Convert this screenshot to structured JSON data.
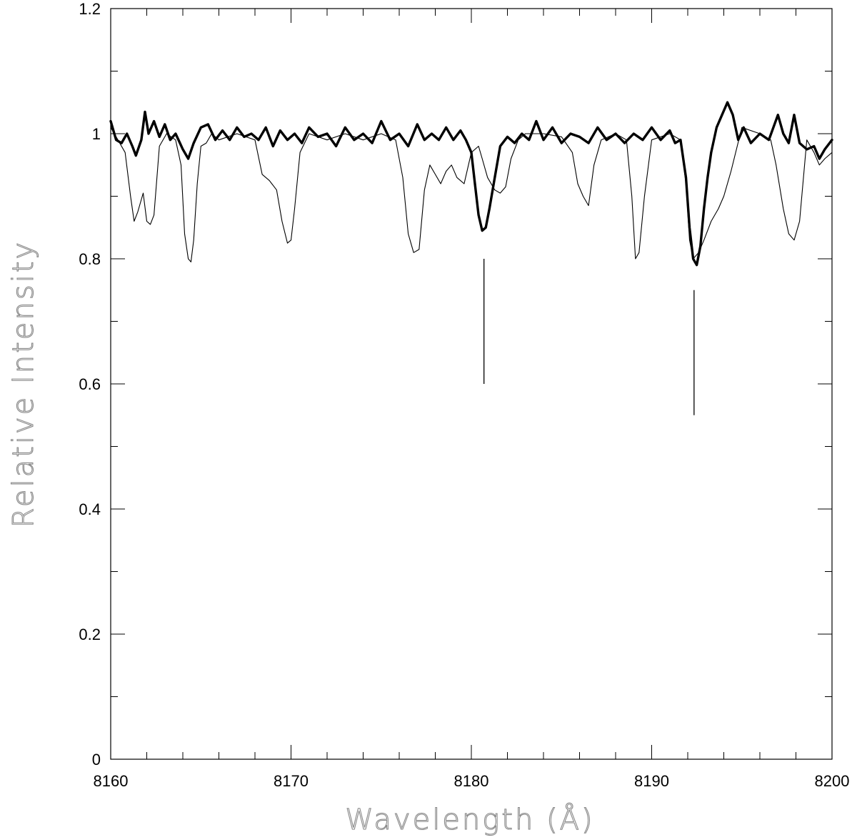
{
  "chart_data": {
    "type": "line",
    "title": "",
    "xlabel": "Wavelength (Å)",
    "ylabel": "Relative Intensity",
    "xlim": [
      8160,
      8200
    ],
    "ylim": [
      0,
      1.2
    ],
    "x_ticks": [
      8160,
      8170,
      8180,
      8190,
      8200
    ],
    "x_tick_labels": [
      "8160",
      "8170",
      "8180",
      "8190",
      "8200"
    ],
    "y_ticks": [
      0,
      0.2,
      0.4,
      0.6,
      0.8,
      1,
      1.2
    ],
    "y_tick_labels": [
      "0",
      "0.2",
      "0.4",
      "0.6",
      "0.8",
      "1",
      "1.2"
    ],
    "x_minor_step": 2,
    "y_minor_step": 0.1,
    "grid": false,
    "legend": "none",
    "series": [
      {
        "style": "thin",
        "color": "#000000",
        "x": [
          8160,
          8160.4,
          8160.8,
          8161.1,
          8161.3,
          8161.5,
          8161.8,
          8162.0,
          8162.2,
          8162.4,
          8162.7,
          8163.1,
          8163.6,
          8163.9,
          8164.1,
          8164.3,
          8164.45,
          8164.6,
          8164.8,
          8165.0,
          8165.3,
          8165.6,
          8166.0,
          8167.0,
          8168.0,
          8168.4,
          8168.8,
          8169.2,
          8169.5,
          8169.8,
          8170.0,
          8170.2,
          8170.5,
          8171.0,
          8172.0,
          8173.0,
          8174.0,
          8175.0,
          8175.8,
          8176.2,
          8176.5,
          8176.8,
          8177.1,
          8177.4,
          8177.7,
          8178.0,
          8178.3,
          8178.6,
          8178.9,
          8179.2,
          8179.6,
          8180.0,
          8180.4,
          8180.6,
          8180.9,
          8181.3,
          8181.6,
          8181.9,
          8182.2,
          8182.6,
          8183.0,
          8184.0,
          8185.0,
          8185.6,
          8185.9,
          8186.2,
          8186.5,
          8186.8,
          8187.2,
          8188.0,
          8188.6,
          8188.9,
          8189.1,
          8189.3,
          8189.6,
          8190.0,
          8191.0,
          8191.6,
          8191.9,
          8192.1,
          8192.3,
          8192.6,
          8192.9,
          8193.3,
          8193.7,
          8194.0,
          8194.4,
          8195.0,
          8196.0,
          8196.6,
          8196.9,
          8197.3,
          8197.6,
          8197.9,
          8198.2,
          8198.6,
          8199.0,
          8199.3,
          8199.6,
          8200.0
        ],
        "y": [
          1.01,
          0.99,
          0.97,
          0.9,
          0.86,
          0.875,
          0.905,
          0.86,
          0.855,
          0.87,
          0.98,
          1.0,
          0.99,
          0.95,
          0.84,
          0.8,
          0.795,
          0.83,
          0.92,
          0.98,
          0.985,
          1.0,
          0.99,
          1.0,
          0.99,
          0.935,
          0.925,
          0.91,
          0.86,
          0.825,
          0.83,
          0.88,
          0.97,
          1.0,
          0.99,
          1.0,
          0.99,
          1.0,
          0.99,
          0.93,
          0.84,
          0.81,
          0.815,
          0.91,
          0.95,
          0.935,
          0.92,
          0.94,
          0.95,
          0.93,
          0.92,
          0.97,
          0.98,
          0.96,
          0.93,
          0.91,
          0.905,
          0.915,
          0.96,
          0.99,
          1.0,
          1.0,
          0.995,
          0.97,
          0.92,
          0.9,
          0.885,
          0.95,
          0.99,
          1.0,
          0.99,
          0.9,
          0.8,
          0.81,
          0.9,
          0.99,
          1.0,
          0.99,
          0.92,
          0.83,
          0.8,
          0.81,
          0.83,
          0.86,
          0.88,
          0.9,
          0.94,
          1.01,
          1.0,
          0.99,
          0.95,
          0.88,
          0.84,
          0.83,
          0.86,
          0.99,
          0.97,
          0.95,
          0.96,
          0.97
        ]
      },
      {
        "style": "thick",
        "color": "#000000",
        "x": [
          8160,
          8160.3,
          8160.6,
          8160.9,
          8161.2,
          8161.4,
          8161.7,
          8161.9,
          8162.1,
          8162.4,
          8162.7,
          8163.0,
          8163.3,
          8163.6,
          8164.0,
          8164.3,
          8164.6,
          8165.0,
          8165.4,
          8165.8,
          8166.2,
          8166.6,
          8167.0,
          8167.4,
          8167.8,
          8168.2,
          8168.6,
          8169.0,
          8169.4,
          8169.8,
          8170.2,
          8170.6,
          8171.0,
          8171.5,
          8172.0,
          8172.5,
          8173.0,
          8173.5,
          8174.0,
          8174.5,
          8175.0,
          8175.5,
          8176.0,
          8176.5,
          8177.0,
          8177.4,
          8177.8,
          8178.2,
          8178.6,
          8179.0,
          8179.4,
          8179.7,
          8180.0,
          8180.2,
          8180.4,
          8180.6,
          8180.8,
          8181.0,
          8181.3,
          8181.6,
          8182.0,
          8182.4,
          8182.8,
          8183.2,
          8183.6,
          8184.0,
          8184.5,
          8185.0,
          8185.5,
          8186.0,
          8186.5,
          8187.0,
          8187.5,
          8188.0,
          8188.5,
          8189.0,
          8189.5,
          8190.0,
          8190.5,
          8191.0,
          8191.3,
          8191.6,
          8191.9,
          8192.1,
          8192.3,
          8192.5,
          8192.7,
          8192.9,
          8193.1,
          8193.3,
          8193.6,
          8193.9,
          8194.2,
          8194.5,
          8194.8,
          8195.1,
          8195.5,
          8196.0,
          8196.5,
          8197.0,
          8197.3,
          8197.6,
          8197.9,
          8198.2,
          8198.6,
          8199.0,
          8199.3,
          8199.6,
          8200.0
        ],
        "y": [
          1.02,
          0.99,
          0.985,
          1.0,
          0.98,
          0.965,
          0.99,
          1.035,
          1.0,
          1.02,
          0.995,
          1.015,
          0.99,
          1.0,
          0.975,
          0.96,
          0.985,
          1.01,
          1.015,
          0.99,
          1.005,
          0.99,
          1.01,
          0.995,
          1.0,
          0.99,
          1.01,
          0.98,
          1.005,
          0.99,
          1.0,
          0.985,
          1.01,
          0.995,
          1.0,
          0.98,
          1.01,
          0.99,
          1.0,
          0.985,
          1.02,
          0.99,
          1.0,
          0.98,
          1.015,
          0.99,
          1.0,
          0.99,
          1.01,
          0.99,
          1.005,
          0.99,
          0.97,
          0.92,
          0.87,
          0.845,
          0.85,
          0.88,
          0.93,
          0.98,
          0.995,
          0.985,
          1.0,
          0.99,
          1.02,
          0.99,
          1.01,
          0.985,
          1.0,
          0.995,
          0.985,
          1.01,
          0.99,
          1.0,
          0.985,
          1.0,
          0.99,
          1.01,
          0.99,
          1.005,
          0.985,
          0.99,
          0.93,
          0.85,
          0.8,
          0.79,
          0.82,
          0.88,
          0.93,
          0.97,
          1.01,
          1.03,
          1.05,
          1.03,
          0.99,
          1.01,
          0.985,
          1.0,
          0.99,
          1.03,
          1.0,
          0.985,
          1.03,
          0.985,
          0.975,
          0.98,
          0.96,
          0.975,
          0.99
        ]
      }
    ],
    "annotations": [
      {
        "type": "vline",
        "x": 8180.7,
        "y_from": 0.6,
        "y_to": 0.8
      },
      {
        "type": "vline",
        "x": 8192.35,
        "y_from": 0.55,
        "y_to": 0.75
      }
    ]
  }
}
